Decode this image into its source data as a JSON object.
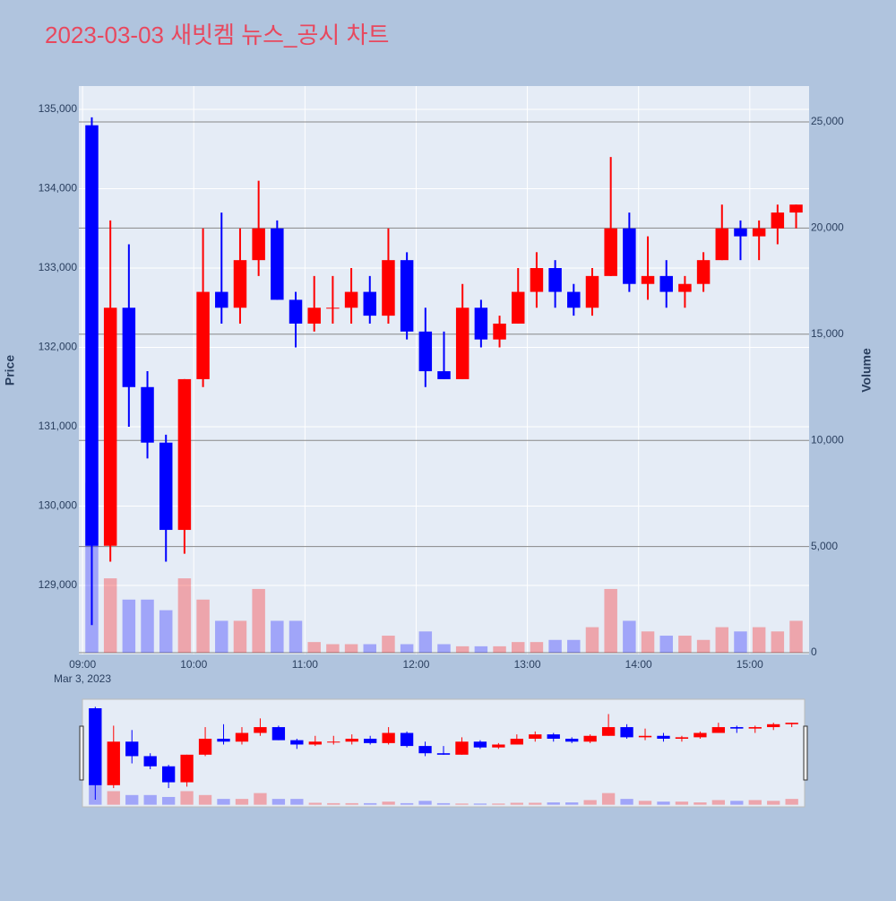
{
  "chart_data": {
    "type": "candlestick",
    "title": "2023-03-03 새빗켐 뉴스_공시 차트",
    "y_title": "Price",
    "y2_title": "Volume",
    "x_date_label": "Mar 3, 2023",
    "increasing_color": "#ff0000",
    "decreasing_color": "#0000ff",
    "x": [
      "2023-03-03 09:00",
      "2023-03-03 09:10",
      "2023-03-03 09:20",
      "2023-03-03 09:30",
      "2023-03-03 09:40",
      "2023-03-03 09:50",
      "2023-03-03 10:00",
      "2023-03-03 10:10",
      "2023-03-03 10:20",
      "2023-03-03 10:30",
      "2023-03-03 10:40",
      "2023-03-03 10:50",
      "2023-03-03 11:00",
      "2023-03-03 11:10",
      "2023-03-03 11:20",
      "2023-03-03 11:30",
      "2023-03-03 11:40",
      "2023-03-03 11:50",
      "2023-03-03 12:00",
      "2023-03-03 12:10",
      "2023-03-03 12:20",
      "2023-03-03 12:30",
      "2023-03-03 12:40",
      "2023-03-03 12:50",
      "2023-03-03 13:00",
      "2023-03-03 13:10",
      "2023-03-03 13:20",
      "2023-03-03 13:30",
      "2023-03-03 13:40",
      "2023-03-03 13:50",
      "2023-03-03 14:00",
      "2023-03-03 14:10",
      "2023-03-03 14:20",
      "2023-03-03 14:30",
      "2023-03-03 14:40",
      "2023-03-03 14:50",
      "2023-03-03 15:00",
      "2023-03-03 15:10",
      "2023-03-03 15:20"
    ],
    "open": [
      134800,
      129500,
      132500,
      131500,
      130800,
      129700,
      131600,
      132700,
      132500,
      133100,
      133500,
      132600,
      132300,
      132500,
      132500,
      132700,
      132400,
      133100,
      132200,
      131700,
      131600,
      132500,
      132100,
      132300,
      132700,
      133000,
      132700,
      132500,
      132900,
      133500,
      132800,
      132900,
      132700,
      132800,
      133100,
      133500,
      133400,
      133500,
      133700
    ],
    "high": [
      134900,
      133600,
      133300,
      131700,
      130900,
      131600,
      133500,
      133700,
      133500,
      134100,
      133600,
      132700,
      132900,
      132900,
      133000,
      132900,
      133500,
      133200,
      132500,
      132200,
      132800,
      132600,
      132400,
      133000,
      133200,
      133100,
      132800,
      133000,
      134400,
      133700,
      133400,
      133100,
      132900,
      133200,
      133800,
      133600,
      133600,
      133800,
      133800
    ],
    "low": [
      128500,
      129300,
      131000,
      130600,
      129300,
      129400,
      131500,
      132300,
      132300,
      132900,
      132600,
      132000,
      132200,
      132300,
      132300,
      132300,
      132300,
      132100,
      131500,
      131600,
      131600,
      132000,
      132000,
      132300,
      132500,
      132500,
      132400,
      132400,
      132900,
      132700,
      132600,
      132500,
      132500,
      132700,
      133100,
      133100,
      133100,
      133300,
      133500
    ],
    "close": [
      129500,
      132500,
      131500,
      130800,
      129700,
      131600,
      132700,
      132500,
      133100,
      133500,
      132600,
      132300,
      132500,
      132500,
      132700,
      132400,
      133100,
      132200,
      131700,
      131600,
      132500,
      132100,
      132300,
      132700,
      133000,
      132700,
      132500,
      132900,
      133500,
      132800,
      132900,
      132700,
      132800,
      133100,
      133500,
      133400,
      133500,
      133700,
      133800
    ],
    "volume": [
      8000,
      3500,
      2500,
      2500,
      2000,
      3500,
      2500,
      1500,
      1500,
      3000,
      1500,
      1500,
      500,
      400,
      400,
      400,
      800,
      400,
      1000,
      400,
      300,
      300,
      300,
      500,
      500,
      600,
      600,
      1200,
      3000,
      1500,
      1000,
      800,
      800,
      600,
      1200,
      1000,
      1200,
      1000,
      1500
    ],
    "xlim": [
      "2023-03-03 08:58",
      "2023-03-03 15:32"
    ],
    "xticks": [
      {
        "value": "2023-03-03 09:00",
        "label": "09:00"
      },
      {
        "value": "2023-03-03 10:00",
        "label": "10:00"
      },
      {
        "value": "2023-03-03 11:00",
        "label": "11:00"
      },
      {
        "value": "2023-03-03 12:00",
        "label": "12:00"
      },
      {
        "value": "2023-03-03 13:00",
        "label": "13:00"
      },
      {
        "value": "2023-03-03 14:00",
        "label": "14:00"
      },
      {
        "value": "2023-03-03 15:00",
        "label": "15:00"
      }
    ],
    "ylim": [
      128130,
      135294
    ],
    "yticks": [
      {
        "value": 129000,
        "label": "129,000"
      },
      {
        "value": 130000,
        "label": "130,000"
      },
      {
        "value": 131000,
        "label": "131,000"
      },
      {
        "value": 132000,
        "label": "132,000"
      },
      {
        "value": 133000,
        "label": "133,000"
      },
      {
        "value": 134000,
        "label": "134,000"
      },
      {
        "value": 135000,
        "label": "135,000"
      }
    ],
    "y2lim": [
      -85,
      26690
    ],
    "y2ticks": [
      0,
      {
        "value": 5000,
        "label": "5,000"
      },
      {
        "value": 10000,
        "label": "10,000"
      },
      {
        "value": 15000,
        "label": "15,000"
      },
      {
        "value": 20000,
        "label": "20,000"
      },
      {
        "value": 25000,
        "label": "25,000"
      }
    ]
  }
}
